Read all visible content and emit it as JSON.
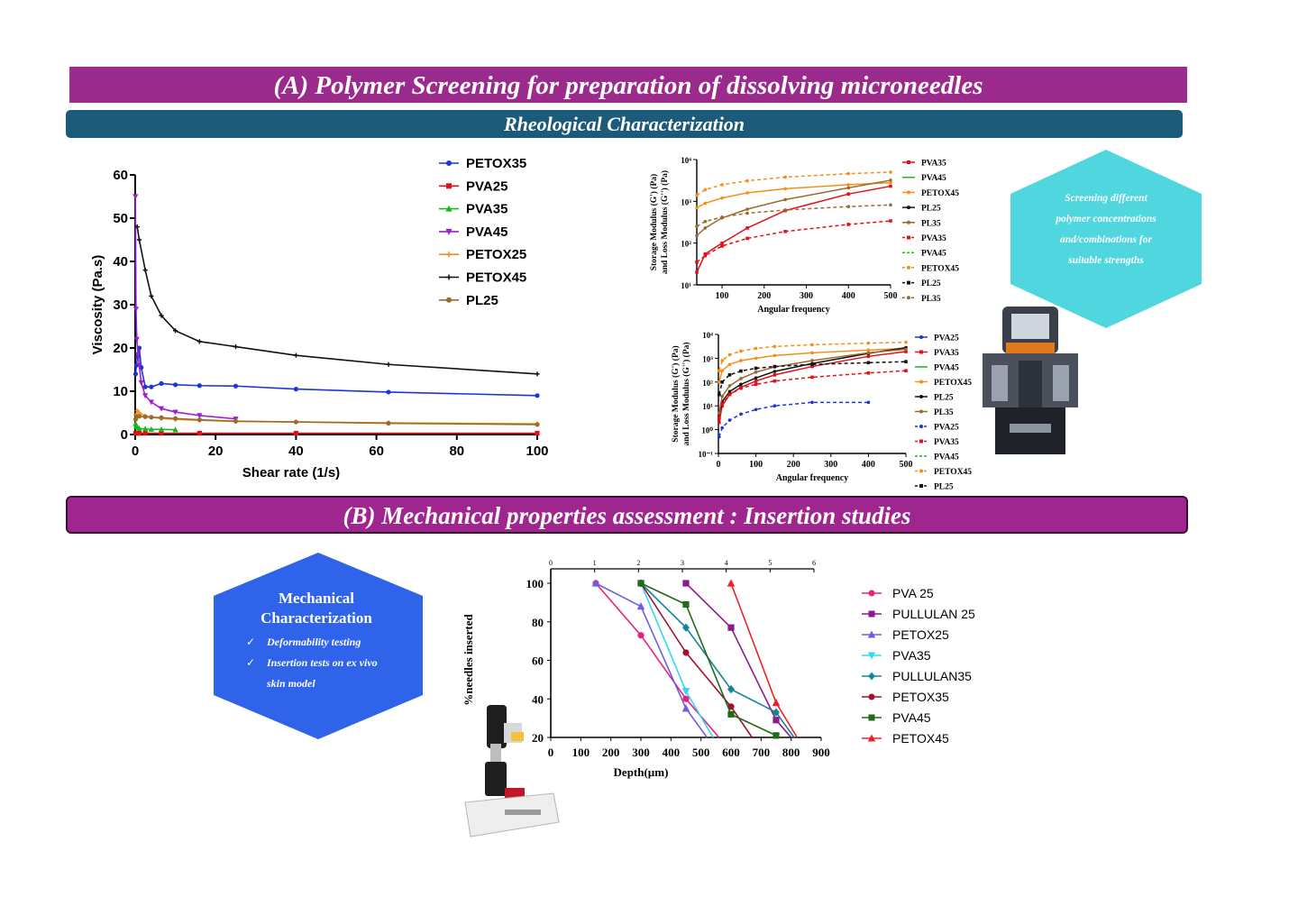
{
  "banners": {
    "a": "(A) Polymer Screening for preparation of dissolving microneedles",
    "rheo": "Rheological Characterization",
    "b": "(B) Mechanical properties assessment : Insertion studies"
  },
  "hexagon_cyan": {
    "lines": [
      "Screening different",
      "polymer concentrations",
      "and/combinations  for",
      "suitable strengths"
    ],
    "color": "#4fd6de"
  },
  "hexagon_blue": {
    "title_lines": [
      "Mechanical",
      "Characterization"
    ],
    "bullets": [
      [
        "Deformability testing"
      ],
      [
        "Insertion tests on ex vivo",
        "skin model"
      ]
    ],
    "color": "#2f63ea",
    "check": "✓"
  },
  "chart_data": [
    {
      "type": "line",
      "xlabel": "Shear rate (1/s)",
      "ylabel": "Viscosity (Pa.s)",
      "xlim": [
        0,
        100
      ],
      "ylim": [
        0,
        60
      ],
      "xticks": [
        0,
        20,
        40,
        60,
        80,
        100
      ],
      "yticks": [
        0,
        10,
        20,
        30,
        40,
        50,
        60
      ],
      "legend_position": "top-right",
      "series": [
        {
          "name": "PETOX35",
          "color": "#1d35d6",
          "marker": "circle",
          "x": [
            0.1,
            0.3,
            0.6,
            1,
            1.5,
            2.5,
            4,
            6.5,
            10,
            16,
            25,
            40,
            63,
            100
          ],
          "y": [
            14,
            16,
            18,
            20,
            15.5,
            11,
            11,
            11.8,
            11.5,
            11.3,
            11.2,
            10.5,
            9.8,
            9
          ]
        },
        {
          "name": "PVA25",
          "color": "#e0111a",
          "marker": "square",
          "x": [
            0.1,
            0.5,
            1,
            2.5,
            6.5,
            16,
            40,
            100
          ],
          "y": [
            0.3,
            0.3,
            0.3,
            0.3,
            0.3,
            0.3,
            0.3,
            0.3
          ]
        },
        {
          "name": "PVA35",
          "color": "#18b81c",
          "marker": "triangle",
          "x": [
            0.1,
            0.3,
            0.6,
            1,
            2.5,
            4,
            6.5,
            10
          ],
          "y": [
            2.5,
            1.9,
            1.6,
            1.4,
            1.3,
            1.2,
            1.2,
            1.1
          ]
        },
        {
          "name": "PVA45",
          "color": "#9b1ed6",
          "marker": "triangle-down",
          "x": [
            0.05,
            0.2,
            0.4,
            0.7,
            1,
            1.5,
            2.5,
            4,
            6.5,
            10,
            16,
            25
          ],
          "y": [
            55,
            29,
            22,
            18.5,
            16,
            12,
            9,
            7.5,
            6,
            5.2,
            4.4,
            3.6
          ]
        },
        {
          "name": "PETOX25",
          "color": "#f39019",
          "marker": "plus",
          "x": [
            0.1,
            0.5,
            1,
            2.5,
            4,
            6.5,
            10,
            16,
            25,
            40,
            63,
            100
          ],
          "y": [
            4.5,
            5.5,
            5,
            4.3,
            4,
            3.7,
            3.5,
            3.3,
            3,
            2.9,
            2.7,
            2.5
          ]
        },
        {
          "name": "PETOX45",
          "color": "#111111",
          "marker": "plus",
          "x": [
            0.5,
            1,
            2.5,
            4,
            6.5,
            10,
            16,
            25,
            40,
            63,
            100
          ],
          "y": [
            48,
            45,
            38,
            32,
            27.5,
            24,
            21.5,
            20.3,
            18.3,
            16.2,
            14
          ]
        },
        {
          "name": "PL25",
          "color": "#9a6b2c",
          "marker": "circle",
          "x": [
            0.1,
            0.5,
            1,
            2.5,
            4,
            6.5,
            10,
            16,
            25,
            40,
            63,
            100
          ],
          "y": [
            3.5,
            4.2,
            4.2,
            4.1,
            4,
            3.9,
            3.7,
            3.4,
            3.1,
            2.9,
            2.6,
            2.3
          ]
        }
      ]
    },
    {
      "type": "line",
      "xlabel": "Angular frequency",
      "ylabel_lines": [
        "Storage Modulus (G') (Pa)",
        "and Loss Modulus (G'') (Pa)"
      ],
      "xlim": [
        40,
        500
      ],
      "ylim_log10": [
        1,
        4
      ],
      "xticks": [
        100,
        200,
        300,
        400,
        500
      ],
      "yticks": [
        "10¹",
        "10²",
        "10³",
        "10⁴"
      ],
      "y_scale": "log",
      "legend_position": "right",
      "series": [
        {
          "name": "PVA35",
          "color": "#e0111a",
          "dash": false,
          "marker": "square",
          "x": [
            40,
            60,
            100,
            160,
            250,
            400,
            500
          ],
          "y": [
            20,
            55,
            100,
            230,
            600,
            1500,
            2300
          ]
        },
        {
          "name": "PVA45",
          "color": "#18b81c",
          "dash": false,
          "marker": "none",
          "x": [],
          "y": []
        },
        {
          "name": "PETOX45",
          "color": "#f39019",
          "dash": false,
          "marker": "circle",
          "x": [
            40,
            60,
            100,
            160,
            250,
            400,
            500
          ],
          "y": [
            700,
            900,
            1200,
            1600,
            2000,
            2500,
            2800
          ]
        },
        {
          "name": "PL25",
          "color": "#111111",
          "dash": false,
          "marker": "circle",
          "x": [],
          "y": []
        },
        {
          "name": "PL35",
          "color": "#9a6b2c",
          "dash": false,
          "marker": "circle",
          "x": [
            40,
            60,
            100,
            160,
            250,
            400,
            500
          ],
          "y": [
            150,
            230,
            400,
            650,
            1100,
            2100,
            3200
          ]
        },
        {
          "name": "PVA35",
          "color": "#e0111a",
          "dash": true,
          "marker": "square",
          "x": [
            40,
            60,
            100,
            160,
            250,
            400,
            500
          ],
          "y": [
            35,
            50,
            85,
            130,
            190,
            280,
            340
          ]
        },
        {
          "name": "PVA45",
          "color": "#18b81c",
          "dash": true,
          "marker": "none",
          "x": [],
          "y": []
        },
        {
          "name": "PETOX45",
          "color": "#f39019",
          "dash": true,
          "marker": "circle",
          "x": [
            40,
            60,
            100,
            160,
            250,
            400,
            500
          ],
          "y": [
            1400,
            1900,
            2500,
            3100,
            3800,
            4600,
            5000
          ]
        },
        {
          "name": "PL25",
          "color": "#111111",
          "dash": true,
          "marker": "square",
          "x": [],
          "y": []
        },
        {
          "name": "PL35",
          "color": "#9a6b2c",
          "dash": true,
          "marker": "circle",
          "x": [
            40,
            60,
            100,
            160,
            250,
            400,
            500
          ],
          "y": [
            250,
            330,
            420,
            520,
            620,
            750,
            820
          ]
        }
      ]
    },
    {
      "type": "line",
      "xlabel": "Angular frequency",
      "ylabel_lines": [
        "Storage Modulus (G') (Pa)",
        "and Loss Modulus (G'') (Pa)"
      ],
      "xlim": [
        0,
        500
      ],
      "ylim_log10": [
        -1,
        4
      ],
      "xticks": [
        0,
        100,
        200,
        300,
        400,
        500
      ],
      "yticks": [
        "10⁻¹",
        "10⁰",
        "10¹",
        "10²",
        "10³",
        "10⁴"
      ],
      "y_scale": "log",
      "legend_position": "right",
      "series": [
        {
          "name": "PVA25",
          "color": "#1d35d6",
          "dash": false,
          "marker": "circle",
          "x": [],
          "y": []
        },
        {
          "name": "PVA35",
          "color": "#e0111a",
          "dash": false,
          "marker": "square",
          "x": [
            2,
            10,
            30,
            60,
            100,
            150,
            250,
            400,
            500
          ],
          "y": [
            2,
            10,
            30,
            60,
            110,
            200,
            450,
            1200,
            1900
          ]
        },
        {
          "name": "PVA45",
          "color": "#18b81c",
          "dash": false,
          "marker": "none",
          "x": [],
          "y": []
        },
        {
          "name": "PETOX45",
          "color": "#f39019",
          "dash": false,
          "marker": "circle",
          "x": [
            2,
            10,
            30,
            60,
            100,
            150,
            250,
            400,
            500
          ],
          "y": [
            100,
            300,
            550,
            800,
            1000,
            1300,
            1700,
            2200,
            2600
          ]
        },
        {
          "name": "PL25",
          "color": "#111111",
          "dash": false,
          "marker": "circle",
          "x": [
            2,
            10,
            30,
            60,
            100,
            150,
            250,
            400,
            500
          ],
          "y": [
            3,
            15,
            40,
            80,
            150,
            280,
            600,
            1600,
            2800
          ]
        },
        {
          "name": "PL35",
          "color": "#9a6b2c",
          "dash": false,
          "marker": "circle",
          "x": [
            2,
            10,
            30,
            60,
            100,
            150,
            250,
            400,
            500
          ],
          "y": [
            5,
            25,
            70,
            140,
            260,
            430,
            800,
            1700,
            2400
          ]
        },
        {
          "name": "PVA25",
          "color": "#1d35d6",
          "dash": true,
          "marker": "circle",
          "x": [
            2,
            10,
            30,
            60,
            100,
            150,
            250,
            400
          ],
          "y": [
            0.5,
            1.2,
            2.5,
            4.5,
            7,
            10,
            14,
            14
          ]
        },
        {
          "name": "PVA35",
          "color": "#e0111a",
          "dash": true,
          "marker": "square",
          "x": [
            2,
            10,
            30,
            60,
            100,
            150,
            250,
            400,
            500
          ],
          "y": [
            3,
            12,
            30,
            55,
            80,
            110,
            160,
            240,
            300
          ]
        },
        {
          "name": "PVA45",
          "color": "#18b81c",
          "dash": true,
          "marker": "none",
          "x": [],
          "y": []
        },
        {
          "name": "PETOX45",
          "color": "#f39019",
          "dash": true,
          "marker": "circle",
          "x": [
            2,
            10,
            30,
            60,
            100,
            150,
            250,
            400,
            500
          ],
          "y": [
            300,
            800,
            1400,
            2000,
            2600,
            3100,
            3700,
            4300,
            4700
          ]
        },
        {
          "name": "PL25",
          "color": "#111111",
          "dash": true,
          "marker": "square",
          "x": [
            2,
            10,
            30,
            60,
            100,
            150,
            250,
            400,
            500
          ],
          "y": [
            30,
            100,
            200,
            290,
            380,
            450,
            550,
            650,
            720
          ]
        }
      ]
    },
    {
      "type": "line",
      "xlabel": "Depth(µm)",
      "ylabel": "%needles inserted",
      "xlim": [
        0,
        900
      ],
      "ylim": [
        20,
        100
      ],
      "xticks": [
        0,
        100,
        200,
        300,
        400,
        500,
        600,
        700,
        800,
        900
      ],
      "yticks": [
        20,
        40,
        60,
        80,
        100
      ],
      "x2ticks": [
        0,
        1,
        2,
        3,
        4,
        5,
        6
      ],
      "legend_position": "right",
      "series": [
        {
          "name": "PVA 25",
          "color": "#e8207a",
          "marker": "circle",
          "x": [
            150,
            300,
            450,
            560
          ],
          "y": [
            100,
            73,
            40,
            20
          ]
        },
        {
          "name": "PULLULAN 25",
          "color": "#8b1a8f",
          "marker": "square",
          "x": [
            450,
            600,
            750,
            800
          ],
          "y": [
            100,
            77,
            29,
            20
          ]
        },
        {
          "name": "PETOX25",
          "color": "#6a60e0",
          "marker": "triangle",
          "x": [
            150,
            300,
            450,
            520
          ],
          "y": [
            100,
            88,
            35,
            20
          ]
        },
        {
          "name": "PVA35",
          "color": "#2fd8f0",
          "marker": "triangle-down",
          "x": [
            300,
            450,
            540
          ],
          "y": [
            100,
            44,
            20
          ]
        },
        {
          "name": "PULLULAN35",
          "color": "#13849a",
          "marker": "diamond",
          "x": [
            300,
            450,
            600,
            750,
            810
          ],
          "y": [
            100,
            77,
            45,
            33,
            20
          ]
        },
        {
          "name": "PETOX35",
          "color": "#a3102e",
          "marker": "circle",
          "x": [
            300,
            450,
            600,
            670
          ],
          "y": [
            100,
            64,
            36,
            20
          ]
        },
        {
          "name": "PVA45",
          "color": "#1f6b18",
          "marker": "square",
          "x": [
            300,
            450,
            600,
            750
          ],
          "y": [
            100,
            89,
            32,
            21
          ]
        },
        {
          "name": "PETOX45",
          "color": "#f0202a",
          "marker": "triangle",
          "x": [
            600,
            750,
            820
          ],
          "y": [
            100,
            38,
            20
          ]
        }
      ]
    }
  ]
}
